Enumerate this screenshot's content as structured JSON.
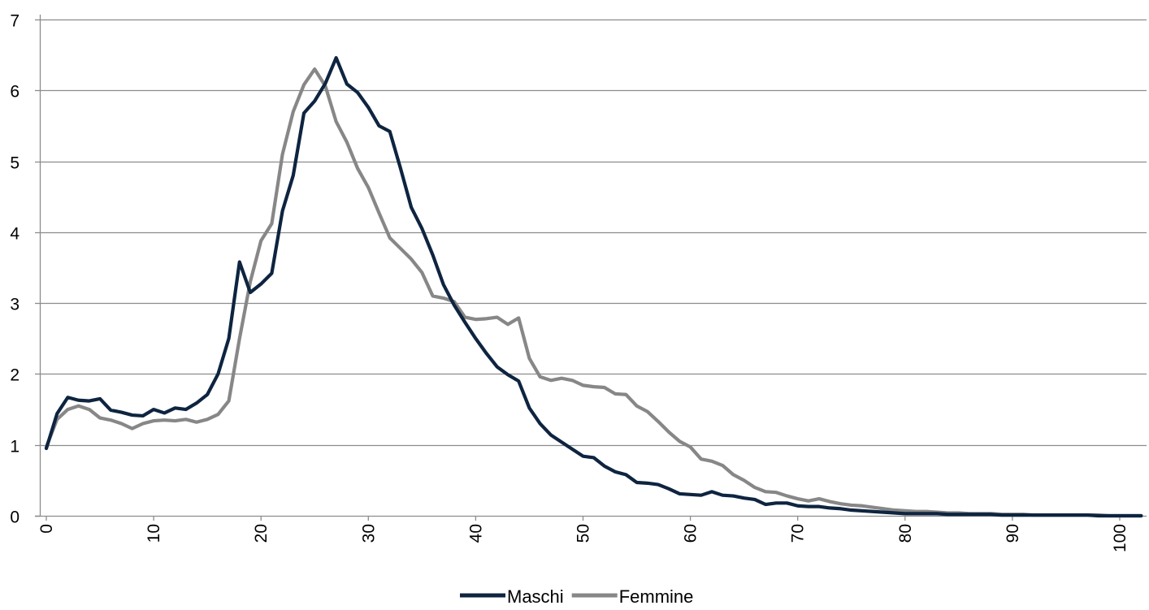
{
  "chart_data": {
    "type": "line",
    "title": "",
    "xlabel": "",
    "ylabel": "",
    "xlim": [
      0,
      102
    ],
    "ylim": [
      0,
      7
    ],
    "xticks": [
      0,
      10,
      20,
      30,
      40,
      50,
      60,
      70,
      80,
      90,
      100
    ],
    "yticks": [
      0,
      1,
      2,
      3,
      4,
      5,
      6,
      7
    ],
    "grid": "horizontal",
    "legend": "bottom",
    "series": [
      {
        "name": "Maschi",
        "color": "#0e2440",
        "x": [
          0,
          1,
          2,
          3,
          4,
          5,
          6,
          7,
          8,
          9,
          10,
          11,
          12,
          13,
          14,
          15,
          16,
          17,
          18,
          19,
          20,
          21,
          22,
          23,
          24,
          25,
          26,
          27,
          28,
          29,
          30,
          31,
          32,
          33,
          34,
          35,
          36,
          37,
          38,
          39,
          40,
          41,
          42,
          43,
          44,
          45,
          46,
          47,
          48,
          49,
          50,
          51,
          52,
          53,
          54,
          55,
          56,
          57,
          58,
          59,
          60,
          61,
          62,
          63,
          64,
          65,
          66,
          67,
          68,
          69,
          70,
          71,
          72,
          73,
          74,
          75,
          76,
          77,
          78,
          79,
          80,
          81,
          82,
          83,
          84,
          85,
          86,
          87,
          88,
          89,
          90,
          91,
          92,
          93,
          94,
          95,
          96,
          97,
          98,
          99,
          100,
          101,
          102
        ],
        "y": [
          0.95,
          1.44,
          1.67,
          1.63,
          1.62,
          1.65,
          1.49,
          1.46,
          1.42,
          1.41,
          1.5,
          1.45,
          1.52,
          1.5,
          1.59,
          1.71,
          2.0,
          2.5,
          3.58,
          3.15,
          3.27,
          3.42,
          4.3,
          4.8,
          5.68,
          5.85,
          6.1,
          6.46,
          6.09,
          5.97,
          5.76,
          5.5,
          5.42,
          4.9,
          4.35,
          4.05,
          3.68,
          3.26,
          2.97,
          2.73,
          2.5,
          2.29,
          2.1,
          1.99,
          1.9,
          1.52,
          1.3,
          1.14,
          1.04,
          0.94,
          0.84,
          0.82,
          0.7,
          0.62,
          0.58,
          0.47,
          0.46,
          0.44,
          0.38,
          0.31,
          0.3,
          0.29,
          0.34,
          0.29,
          0.28,
          0.25,
          0.23,
          0.16,
          0.18,
          0.18,
          0.14,
          0.13,
          0.13,
          0.11,
          0.1,
          0.08,
          0.07,
          0.06,
          0.05,
          0.04,
          0.03,
          0.03,
          0.03,
          0.03,
          0.02,
          0.02,
          0.02,
          0.02,
          0.02,
          0.01,
          0.01,
          0.01,
          0.01,
          0.01,
          0.01,
          0.01,
          0.01,
          0.01,
          0.0,
          0.0,
          0.0,
          0.0,
          0.0
        ]
      },
      {
        "name": "Femmine",
        "color": "#878787",
        "x": [
          0,
          1,
          2,
          3,
          4,
          5,
          6,
          7,
          8,
          9,
          10,
          11,
          12,
          13,
          14,
          15,
          16,
          17,
          18,
          19,
          20,
          21,
          22,
          23,
          24,
          25,
          26,
          27,
          28,
          29,
          30,
          31,
          32,
          33,
          34,
          35,
          36,
          37,
          38,
          39,
          40,
          41,
          42,
          43,
          44,
          45,
          46,
          47,
          48,
          49,
          50,
          51,
          52,
          53,
          54,
          55,
          56,
          57,
          58,
          59,
          60,
          61,
          62,
          63,
          64,
          65,
          66,
          67,
          68,
          69,
          70,
          71,
          72,
          73,
          74,
          75,
          76,
          77,
          78,
          79,
          80,
          81,
          82,
          83,
          84,
          85,
          86,
          87,
          88,
          89,
          90,
          91,
          92,
          93,
          94,
          95,
          96,
          97,
          98,
          99,
          100,
          101,
          102
        ],
        "y": [
          0.97,
          1.36,
          1.5,
          1.55,
          1.5,
          1.38,
          1.35,
          1.3,
          1.23,
          1.3,
          1.34,
          1.35,
          1.34,
          1.36,
          1.32,
          1.36,
          1.43,
          1.62,
          2.5,
          3.3,
          3.88,
          4.12,
          5.1,
          5.7,
          6.08,
          6.3,
          6.06,
          5.56,
          5.27,
          4.9,
          4.63,
          4.27,
          3.92,
          3.77,
          3.62,
          3.43,
          3.1,
          3.07,
          3.02,
          2.8,
          2.77,
          2.78,
          2.8,
          2.7,
          2.79,
          2.22,
          1.96,
          1.91,
          1.94,
          1.91,
          1.84,
          1.82,
          1.81,
          1.72,
          1.71,
          1.55,
          1.47,
          1.33,
          1.18,
          1.05,
          0.97,
          0.8,
          0.77,
          0.71,
          0.58,
          0.5,
          0.4,
          0.34,
          0.33,
          0.28,
          0.24,
          0.21,
          0.24,
          0.2,
          0.17,
          0.15,
          0.14,
          0.12,
          0.1,
          0.08,
          0.07,
          0.06,
          0.06,
          0.05,
          0.04,
          0.04,
          0.03,
          0.03,
          0.03,
          0.02,
          0.02,
          0.02,
          0.01,
          0.01,
          0.01,
          0.01,
          0.01,
          0.01,
          0.01,
          0.0,
          0.0,
          0.0,
          0.0
        ]
      }
    ]
  }
}
